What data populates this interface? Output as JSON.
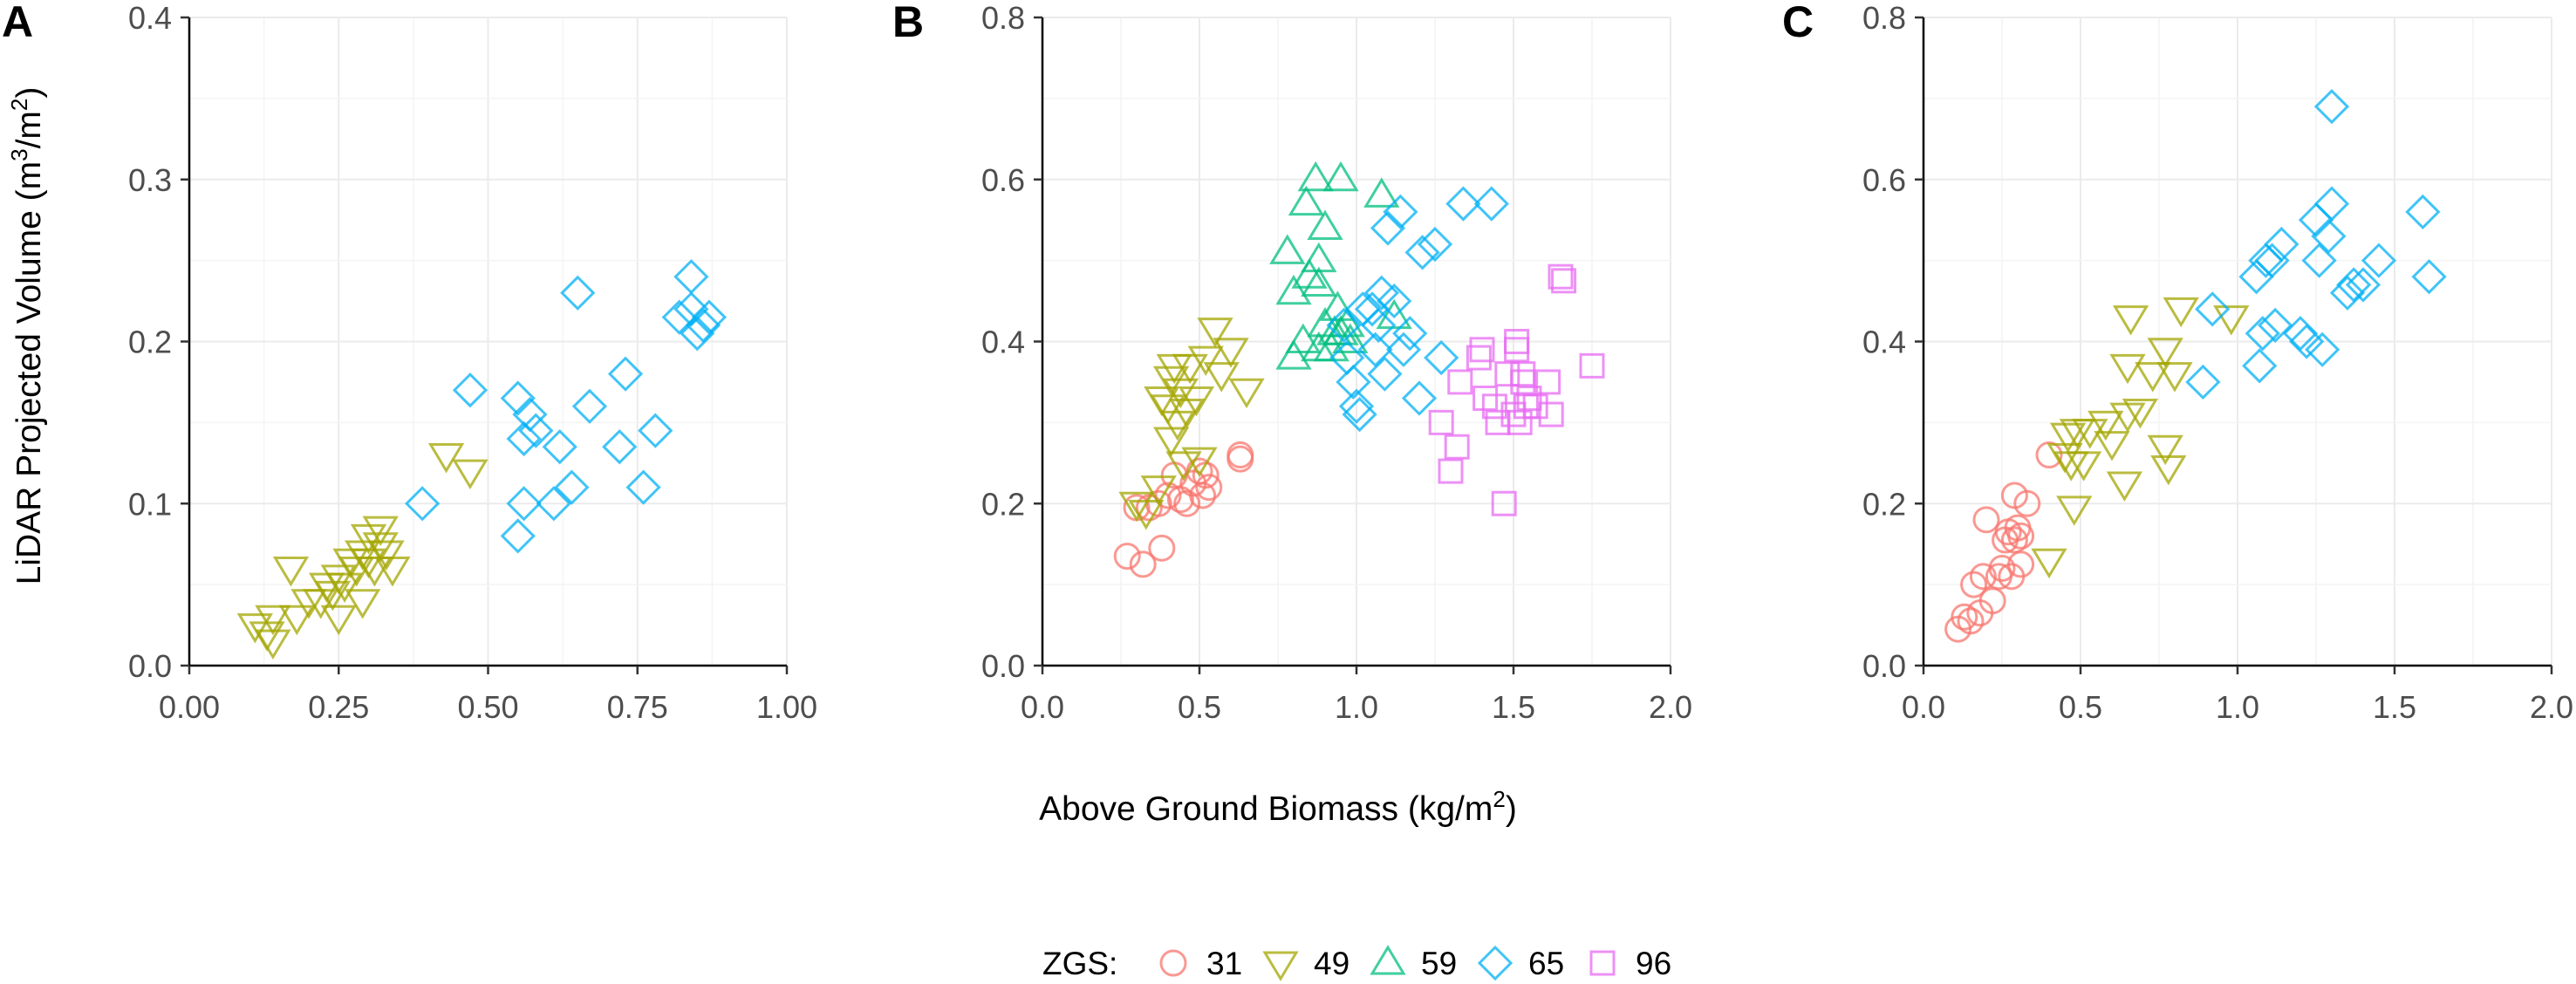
{
  "figure": {
    "x_axis_title": "Above Ground Biomass (kg/m",
    "x_axis_title_sup": "2",
    "x_axis_title_end": ")",
    "y_axis_title_a": "LiDAR Projected Volume (m",
    "y_axis_title_sup1": "3",
    "y_axis_title_b": "/m",
    "y_axis_title_sup2": "2",
    "y_axis_title_end": ")"
  },
  "legend": {
    "title": "ZGS:",
    "position": "bottom-center",
    "items": [
      {
        "label": "31",
        "shape": "circle",
        "color": "#F8766D"
      },
      {
        "label": "49",
        "shape": "triangle-down",
        "color": "#A3A500"
      },
      {
        "label": "59",
        "shape": "triangle-up",
        "color": "#00BF7D"
      },
      {
        "label": "65",
        "shape": "diamond",
        "color": "#00B0F6"
      },
      {
        "label": "96",
        "shape": "square",
        "color": "#E76BF3"
      }
    ]
  },
  "chart_data": [
    {
      "panel": "A",
      "type": "scatter",
      "xlim": [
        0,
        1.0
      ],
      "ylim": [
        0,
        0.4
      ],
      "x_ticks": [
        0.0,
        0.25,
        0.5,
        0.75,
        1.0
      ],
      "x_tick_labels": [
        "0.00",
        "0.25",
        "0.50",
        "0.75",
        "1.00"
      ],
      "y_ticks": [
        0.0,
        0.1,
        0.2,
        0.3,
        0.4
      ],
      "y_tick_labels": [
        "0.0",
        "0.1",
        "0.2",
        "0.3",
        "0.4"
      ],
      "grid": true,
      "series": [
        {
          "name": "49",
          "points": [
            [
              0.11,
              0.025
            ],
            [
              0.13,
              0.02
            ],
            [
              0.14,
              0.015
            ],
            [
              0.14,
              0.03
            ],
            [
              0.17,
              0.06
            ],
            [
              0.18,
              0.03
            ],
            [
              0.2,
              0.04
            ],
            [
              0.22,
              0.04
            ],
            [
              0.23,
              0.05
            ],
            [
              0.24,
              0.045
            ],
            [
              0.25,
              0.055
            ],
            [
              0.25,
              0.03
            ],
            [
              0.26,
              0.05
            ],
            [
              0.27,
              0.065
            ],
            [
              0.28,
              0.06
            ],
            [
              0.29,
              0.07
            ],
            [
              0.29,
              0.04
            ],
            [
              0.3,
              0.065
            ],
            [
              0.3,
              0.08
            ],
            [
              0.31,
              0.06
            ],
            [
              0.32,
              0.075
            ],
            [
              0.32,
              0.085
            ],
            [
              0.33,
              0.07
            ],
            [
              0.34,
              0.06
            ],
            [
              0.43,
              0.13
            ],
            [
              0.47,
              0.12
            ]
          ]
        },
        {
          "name": "65",
          "points": [
            [
              0.39,
              0.1
            ],
            [
              0.47,
              0.17
            ],
            [
              0.55,
              0.165
            ],
            [
              0.55,
              0.08
            ],
            [
              0.56,
              0.1
            ],
            [
              0.56,
              0.14
            ],
            [
              0.57,
              0.155
            ],
            [
              0.58,
              0.145
            ],
            [
              0.61,
              0.1
            ],
            [
              0.62,
              0.135
            ],
            [
              0.64,
              0.11
            ],
            [
              0.65,
              0.23
            ],
            [
              0.67,
              0.16
            ],
            [
              0.72,
              0.135
            ],
            [
              0.73,
              0.18
            ],
            [
              0.76,
              0.11
            ],
            [
              0.78,
              0.145
            ],
            [
              0.82,
              0.215
            ],
            [
              0.84,
              0.22
            ],
            [
              0.84,
              0.24
            ],
            [
              0.85,
              0.205
            ],
            [
              0.86,
              0.21
            ],
            [
              0.87,
              0.215
            ]
          ]
        }
      ]
    },
    {
      "panel": "B",
      "type": "scatter",
      "xlim": [
        0,
        2.0
      ],
      "ylim": [
        0,
        0.8
      ],
      "x_ticks": [
        0.0,
        0.5,
        1.0,
        1.5,
        2.0
      ],
      "x_tick_labels": [
        "0.0",
        "0.5",
        "1.0",
        "1.5",
        "2.0"
      ],
      "y_ticks": [
        0.0,
        0.2,
        0.4,
        0.6,
        0.8
      ],
      "y_tick_labels": [
        "0.0",
        "0.2",
        "0.4",
        "0.6",
        "0.8"
      ],
      "grid": true,
      "series": [
        {
          "name": "31",
          "points": [
            [
              0.27,
              0.135
            ],
            [
              0.3,
              0.195
            ],
            [
              0.32,
              0.125
            ],
            [
              0.34,
              0.195
            ],
            [
              0.37,
              0.2
            ],
            [
              0.38,
              0.145
            ],
            [
              0.4,
              0.21
            ],
            [
              0.42,
              0.235
            ],
            [
              0.44,
              0.205
            ],
            [
              0.46,
              0.2
            ],
            [
              0.48,
              0.225
            ],
            [
              0.5,
              0.24
            ],
            [
              0.51,
              0.21
            ],
            [
              0.52,
              0.235
            ],
            [
              0.53,
              0.22
            ],
            [
              0.63,
              0.26
            ],
            [
              0.63,
              0.255
            ]
          ]
        },
        {
          "name": "49",
          "points": [
            [
              0.3,
              0.2
            ],
            [
              0.33,
              0.19
            ],
            [
              0.37,
              0.22
            ],
            [
              0.38,
              0.33
            ],
            [
              0.4,
              0.32
            ],
            [
              0.41,
              0.28
            ],
            [
              0.41,
              0.355
            ],
            [
              0.42,
              0.37
            ],
            [
              0.43,
              0.3
            ],
            [
              0.44,
              0.34
            ],
            [
              0.45,
              0.25
            ],
            [
              0.46,
              0.315
            ],
            [
              0.47,
              0.37
            ],
            [
              0.49,
              0.33
            ],
            [
              0.5,
              0.255
            ],
            [
              0.52,
              0.38
            ],
            [
              0.55,
              0.415
            ],
            [
              0.57,
              0.36
            ],
            [
              0.6,
              0.39
            ],
            [
              0.65,
              0.34
            ]
          ]
        },
        {
          "name": "59",
          "points": [
            [
              0.78,
              0.51
            ],
            [
              0.8,
              0.46
            ],
            [
              0.8,
              0.38
            ],
            [
              0.83,
              0.4
            ],
            [
              0.84,
              0.57
            ],
            [
              0.85,
              0.48
            ],
            [
              0.87,
              0.6
            ],
            [
              0.88,
              0.5
            ],
            [
              0.88,
              0.47
            ],
            [
              0.88,
              0.39
            ],
            [
              0.9,
              0.42
            ],
            [
              0.9,
              0.54
            ],
            [
              0.92,
              0.39
            ],
            [
              0.93,
              0.41
            ],
            [
              0.94,
              0.44
            ],
            [
              0.95,
              0.6
            ],
            [
              0.95,
              0.41
            ],
            [
              0.97,
              0.42
            ],
            [
              0.98,
              0.4
            ],
            [
              1.08,
              0.58
            ],
            [
              1.12,
              0.43
            ]
          ]
        },
        {
          "name": "65",
          "points": [
            [
              0.96,
              0.42
            ],
            [
              0.97,
              0.38
            ],
            [
              0.99,
              0.35
            ],
            [
              1.0,
              0.32
            ],
            [
              1.01,
              0.31
            ],
            [
              1.02,
              0.44
            ],
            [
              1.05,
              0.44
            ],
            [
              1.06,
              0.39
            ],
            [
              1.07,
              0.42
            ],
            [
              1.08,
              0.46
            ],
            [
              1.09,
              0.36
            ],
            [
              1.1,
              0.54
            ],
            [
              1.12,
              0.45
            ],
            [
              1.14,
              0.56
            ],
            [
              1.15,
              0.39
            ],
            [
              1.17,
              0.41
            ],
            [
              1.2,
              0.33
            ],
            [
              1.21,
              0.51
            ],
            [
              1.25,
              0.52
            ],
            [
              1.27,
              0.38
            ],
            [
              1.34,
              0.57
            ],
            [
              1.43,
              0.57
            ]
          ]
        },
        {
          "name": "96",
          "points": [
            [
              1.27,
              0.3
            ],
            [
              1.3,
              0.24
            ],
            [
              1.32,
              0.27
            ],
            [
              1.33,
              0.35
            ],
            [
              1.39,
              0.38
            ],
            [
              1.4,
              0.39
            ],
            [
              1.41,
              0.33
            ],
            [
              1.44,
              0.32
            ],
            [
              1.45,
              0.3
            ],
            [
              1.47,
              0.2
            ],
            [
              1.48,
              0.36
            ],
            [
              1.5,
              0.31
            ],
            [
              1.51,
              0.39
            ],
            [
              1.51,
              0.4
            ],
            [
              1.52,
              0.3
            ],
            [
              1.53,
              0.35
            ],
            [
              1.53,
              0.36
            ],
            [
              1.54,
              0.32
            ],
            [
              1.55,
              0.33
            ],
            [
              1.57,
              0.32
            ],
            [
              1.61,
              0.35
            ],
            [
              1.62,
              0.31
            ],
            [
              1.65,
              0.48
            ],
            [
              1.66,
              0.475
            ],
            [
              1.75,
              0.37
            ]
          ]
        }
      ]
    },
    {
      "panel": "C",
      "type": "scatter",
      "xlim": [
        0,
        2.0
      ],
      "ylim": [
        0,
        0.8
      ],
      "x_ticks": [
        0.0,
        0.5,
        1.0,
        1.5,
        2.0
      ],
      "x_tick_labels": [
        "0.0",
        "0.5",
        "1.0",
        "1.5",
        "2.0"
      ],
      "y_ticks": [
        0.0,
        0.2,
        0.4,
        0.6,
        0.8
      ],
      "y_tick_labels": [
        "0.0",
        "0.2",
        "0.4",
        "0.6",
        "0.8"
      ],
      "grid": true,
      "series": [
        {
          "name": "31",
          "points": [
            [
              0.11,
              0.045
            ],
            [
              0.13,
              0.06
            ],
            [
              0.15,
              0.055
            ],
            [
              0.16,
              0.1
            ],
            [
              0.18,
              0.065
            ],
            [
              0.19,
              0.11
            ],
            [
              0.2,
              0.18
            ],
            [
              0.22,
              0.08
            ],
            [
              0.24,
              0.11
            ],
            [
              0.25,
              0.12
            ],
            [
              0.26,
              0.155
            ],
            [
              0.27,
              0.165
            ],
            [
              0.28,
              0.11
            ],
            [
              0.29,
              0.21
            ],
            [
              0.29,
              0.155
            ],
            [
              0.3,
              0.17
            ],
            [
              0.31,
              0.125
            ],
            [
              0.31,
              0.16
            ],
            [
              0.33,
              0.2
            ],
            [
              0.4,
              0.26
            ]
          ]
        },
        {
          "name": "49",
          "points": [
            [
              0.4,
              0.13
            ],
            [
              0.45,
              0.26
            ],
            [
              0.46,
              0.285
            ],
            [
              0.47,
              0.25
            ],
            [
              0.48,
              0.195
            ],
            [
              0.49,
              0.29
            ],
            [
              0.51,
              0.25
            ],
            [
              0.53,
              0.29
            ],
            [
              0.58,
              0.3
            ],
            [
              0.6,
              0.275
            ],
            [
              0.64,
              0.225
            ],
            [
              0.65,
              0.31
            ],
            [
              0.65,
              0.37
            ],
            [
              0.66,
              0.43
            ],
            [
              0.69,
              0.315
            ],
            [
              0.73,
              0.36
            ],
            [
              0.77,
              0.39
            ],
            [
              0.77,
              0.27
            ],
            [
              0.78,
              0.245
            ],
            [
              0.8,
              0.36
            ],
            [
              0.82,
              0.44
            ],
            [
              0.98,
              0.43
            ]
          ]
        },
        {
          "name": "65",
          "points": [
            [
              0.89,
              0.35
            ],
            [
              0.92,
              0.44
            ],
            [
              1.06,
              0.48
            ],
            [
              1.07,
              0.37
            ],
            [
              1.08,
              0.41
            ],
            [
              1.09,
              0.5
            ],
            [
              1.11,
              0.5
            ],
            [
              1.12,
              0.42
            ],
            [
              1.14,
              0.52
            ],
            [
              1.2,
              0.41
            ],
            [
              1.22,
              0.4
            ],
            [
              1.25,
              0.55
            ],
            [
              1.26,
              0.5
            ],
            [
              1.27,
              0.39
            ],
            [
              1.29,
              0.53
            ],
            [
              1.3,
              0.57
            ],
            [
              1.3,
              0.69
            ],
            [
              1.35,
              0.46
            ],
            [
              1.37,
              0.47
            ],
            [
              1.4,
              0.47
            ],
            [
              1.45,
              0.5
            ],
            [
              1.59,
              0.56
            ],
            [
              1.61,
              0.48
            ]
          ]
        }
      ]
    }
  ],
  "panel_letters": [
    "A",
    "B",
    "C"
  ]
}
